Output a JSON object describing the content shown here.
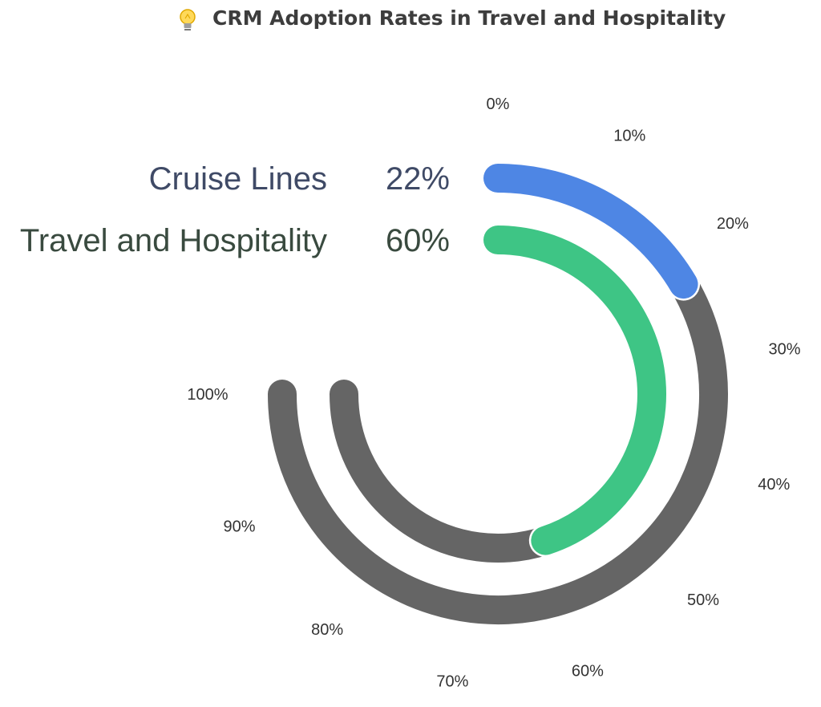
{
  "title": "CRM Adoption Rates in Travel and Hospitality",
  "title_icon": "lightbulb-icon",
  "colors": {
    "track": "#656565",
    "title": "#3d3d3d"
  },
  "chart_data": {
    "type": "radial-bar",
    "title": "CRM Adoption Rates in Travel and Hospitality",
    "ticks": [
      "0%",
      "10%",
      "20%",
      "30%",
      "40%",
      "50%",
      "60%",
      "70%",
      "80%",
      "90%",
      "100%"
    ],
    "max": 100,
    "series": [
      {
        "name": "Cruise Lines",
        "value": 22,
        "value_label": "22%",
        "color": "#4e86e4",
        "label_color": "#3f4a66"
      },
      {
        "name": "Travel and Hospitality",
        "value": 60,
        "value_label": "60%",
        "color": "#3ec585",
        "label_color": "#394a3f"
      }
    ]
  }
}
